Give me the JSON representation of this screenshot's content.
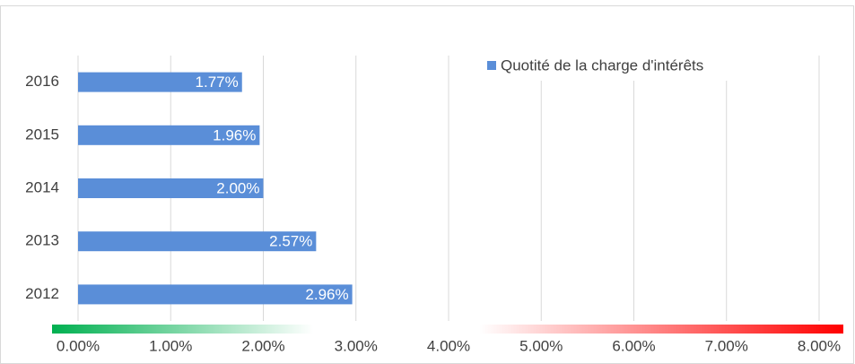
{
  "chart_data": {
    "type": "bar",
    "orientation": "horizontal",
    "categories": [
      "2016",
      "2015",
      "2014",
      "2013",
      "2012"
    ],
    "series": [
      {
        "name": "Quotité de la charge d'intérêts",
        "color": "#5a8ed8",
        "values": [
          1.77,
          1.96,
          2.0,
          2.57,
          2.96
        ],
        "value_labels": [
          "1.77%",
          "1.96%",
          "2.00%",
          "2.57%",
          "2.96%"
        ]
      }
    ],
    "xlim": [
      0,
      8
    ],
    "xticks": [
      {
        "value": 0,
        "label": "0.00%"
      },
      {
        "value": 1,
        "label": "1.00%"
      },
      {
        "value": 2,
        "label": "2.00%"
      },
      {
        "value": 3,
        "label": "3.00%"
      },
      {
        "value": 4,
        "label": "4.00%"
      },
      {
        "value": 5,
        "label": "5.00%"
      },
      {
        "value": 6,
        "label": "6.00%"
      },
      {
        "value": 7,
        "label": "7.00%"
      },
      {
        "value": 8,
        "label": "8.00%"
      }
    ],
    "grid": true,
    "legend": "top-right"
  }
}
